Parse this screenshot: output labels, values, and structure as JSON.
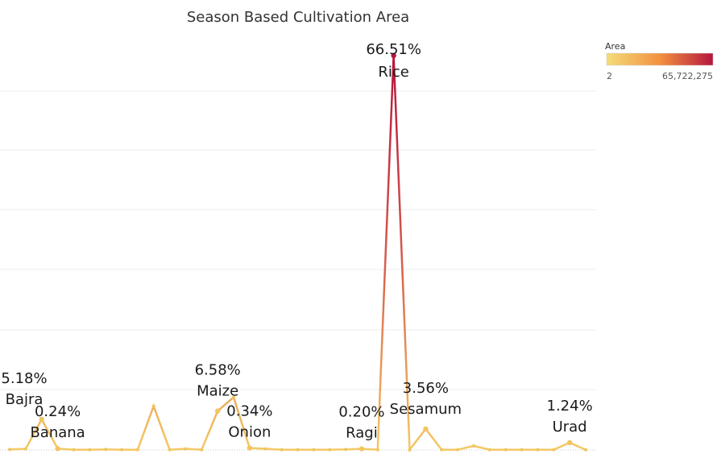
{
  "chart_data": {
    "type": "line",
    "title": "Season Based Cultivation Area",
    "xlabel": "",
    "ylabel": "",
    "grid": true,
    "ylim": [
      0,
      70
    ],
    "color_legend": {
      "title": "Area",
      "min_label": "2",
      "max_label": "65,722,275",
      "min_color": "#f4dc7a",
      "mid_color": "#f2913f",
      "max_color": "#b5163e",
      "placement": "top-right"
    },
    "points": [
      {
        "value": 0.1
      },
      {
        "value": 0.2
      },
      {
        "value": 5.18,
        "pct": "5.18%",
        "name": "Bajra"
      },
      {
        "value": 0.24,
        "pct": "0.24%",
        "name": "Banana"
      },
      {
        "value": 0.05
      },
      {
        "value": 0.05
      },
      {
        "value": 0.1
      },
      {
        "value": 0.05
      },
      {
        "value": 0.05
      },
      {
        "value": 7.4
      },
      {
        "value": 0.05
      },
      {
        "value": 0.2
      },
      {
        "value": 0.05
      },
      {
        "value": 6.58,
        "pct": "6.58%",
        "name": "Maize"
      },
      {
        "value": 8.9
      },
      {
        "value": 0.34,
        "pct": "0.34%",
        "name": "Onion"
      },
      {
        "value": 0.2
      },
      {
        "value": 0.05
      },
      {
        "value": 0.05
      },
      {
        "value": 0.05
      },
      {
        "value": 0.05
      },
      {
        "value": 0.1
      },
      {
        "value": 0.2,
        "pct": "0.20%",
        "name": "Ragi"
      },
      {
        "value": 0.05
      },
      {
        "value": 66.51,
        "pct": "66.51%",
        "name": "Rice"
      },
      {
        "value": 0.05
      },
      {
        "value": 3.56,
        "pct": "3.56%",
        "name": "Sesamum"
      },
      {
        "value": 0.05
      },
      {
        "value": 0.05
      },
      {
        "value": 0.7
      },
      {
        "value": 0.05
      },
      {
        "value": 0.05
      },
      {
        "value": 0.05
      },
      {
        "value": 0.05
      },
      {
        "value": 0.05
      },
      {
        "value": 1.24,
        "pct": "1.24%",
        "name": "Urad"
      },
      {
        "value": 0.05
      }
    ]
  }
}
